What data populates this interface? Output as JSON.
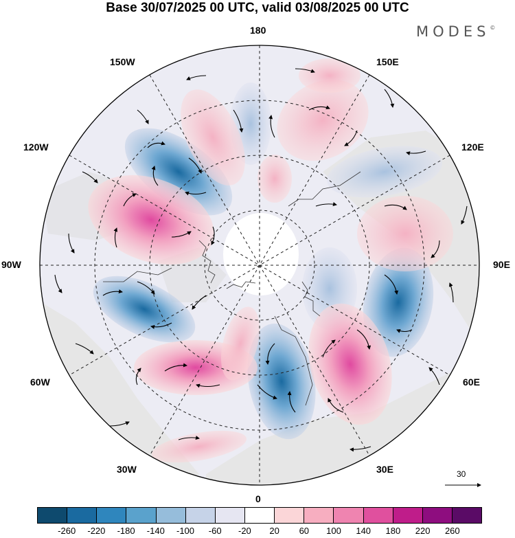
{
  "title": "Base 30/07/2025 00 UTC, valid 03/08/2025 00 UTC",
  "brand": "MODES",
  "brand_mark": "©",
  "longitude_labels": {
    "top": "180",
    "top_right": "150E",
    "right_upper": "120E",
    "right": "90E",
    "right_lower": "60E",
    "bottom_right": "30E",
    "bottom": "0",
    "bottom_left": "30W",
    "left_lower": "60W",
    "left": "90W",
    "left_upper": "120W",
    "top_left": "150W"
  },
  "reference_vector": {
    "label": "30"
  },
  "colorbar": {
    "colors": [
      "#0e4a6e",
      "#1a6aa0",
      "#2f86bd",
      "#5aa2cc",
      "#96bddb",
      "#c6d3e8",
      "#e6e6f2",
      "#ffffff",
      "#fbd6d8",
      "#f7aec0",
      "#ef84b0",
      "#e0509e",
      "#bf1d8a",
      "#8e0d7f",
      "#5a0b66"
    ],
    "tick_labels": [
      "-260",
      "-220",
      "-180",
      "-140",
      "-100",
      "-60",
      "-20",
      "20",
      "60",
      "100",
      "140",
      "180",
      "220",
      "260"
    ]
  }
}
